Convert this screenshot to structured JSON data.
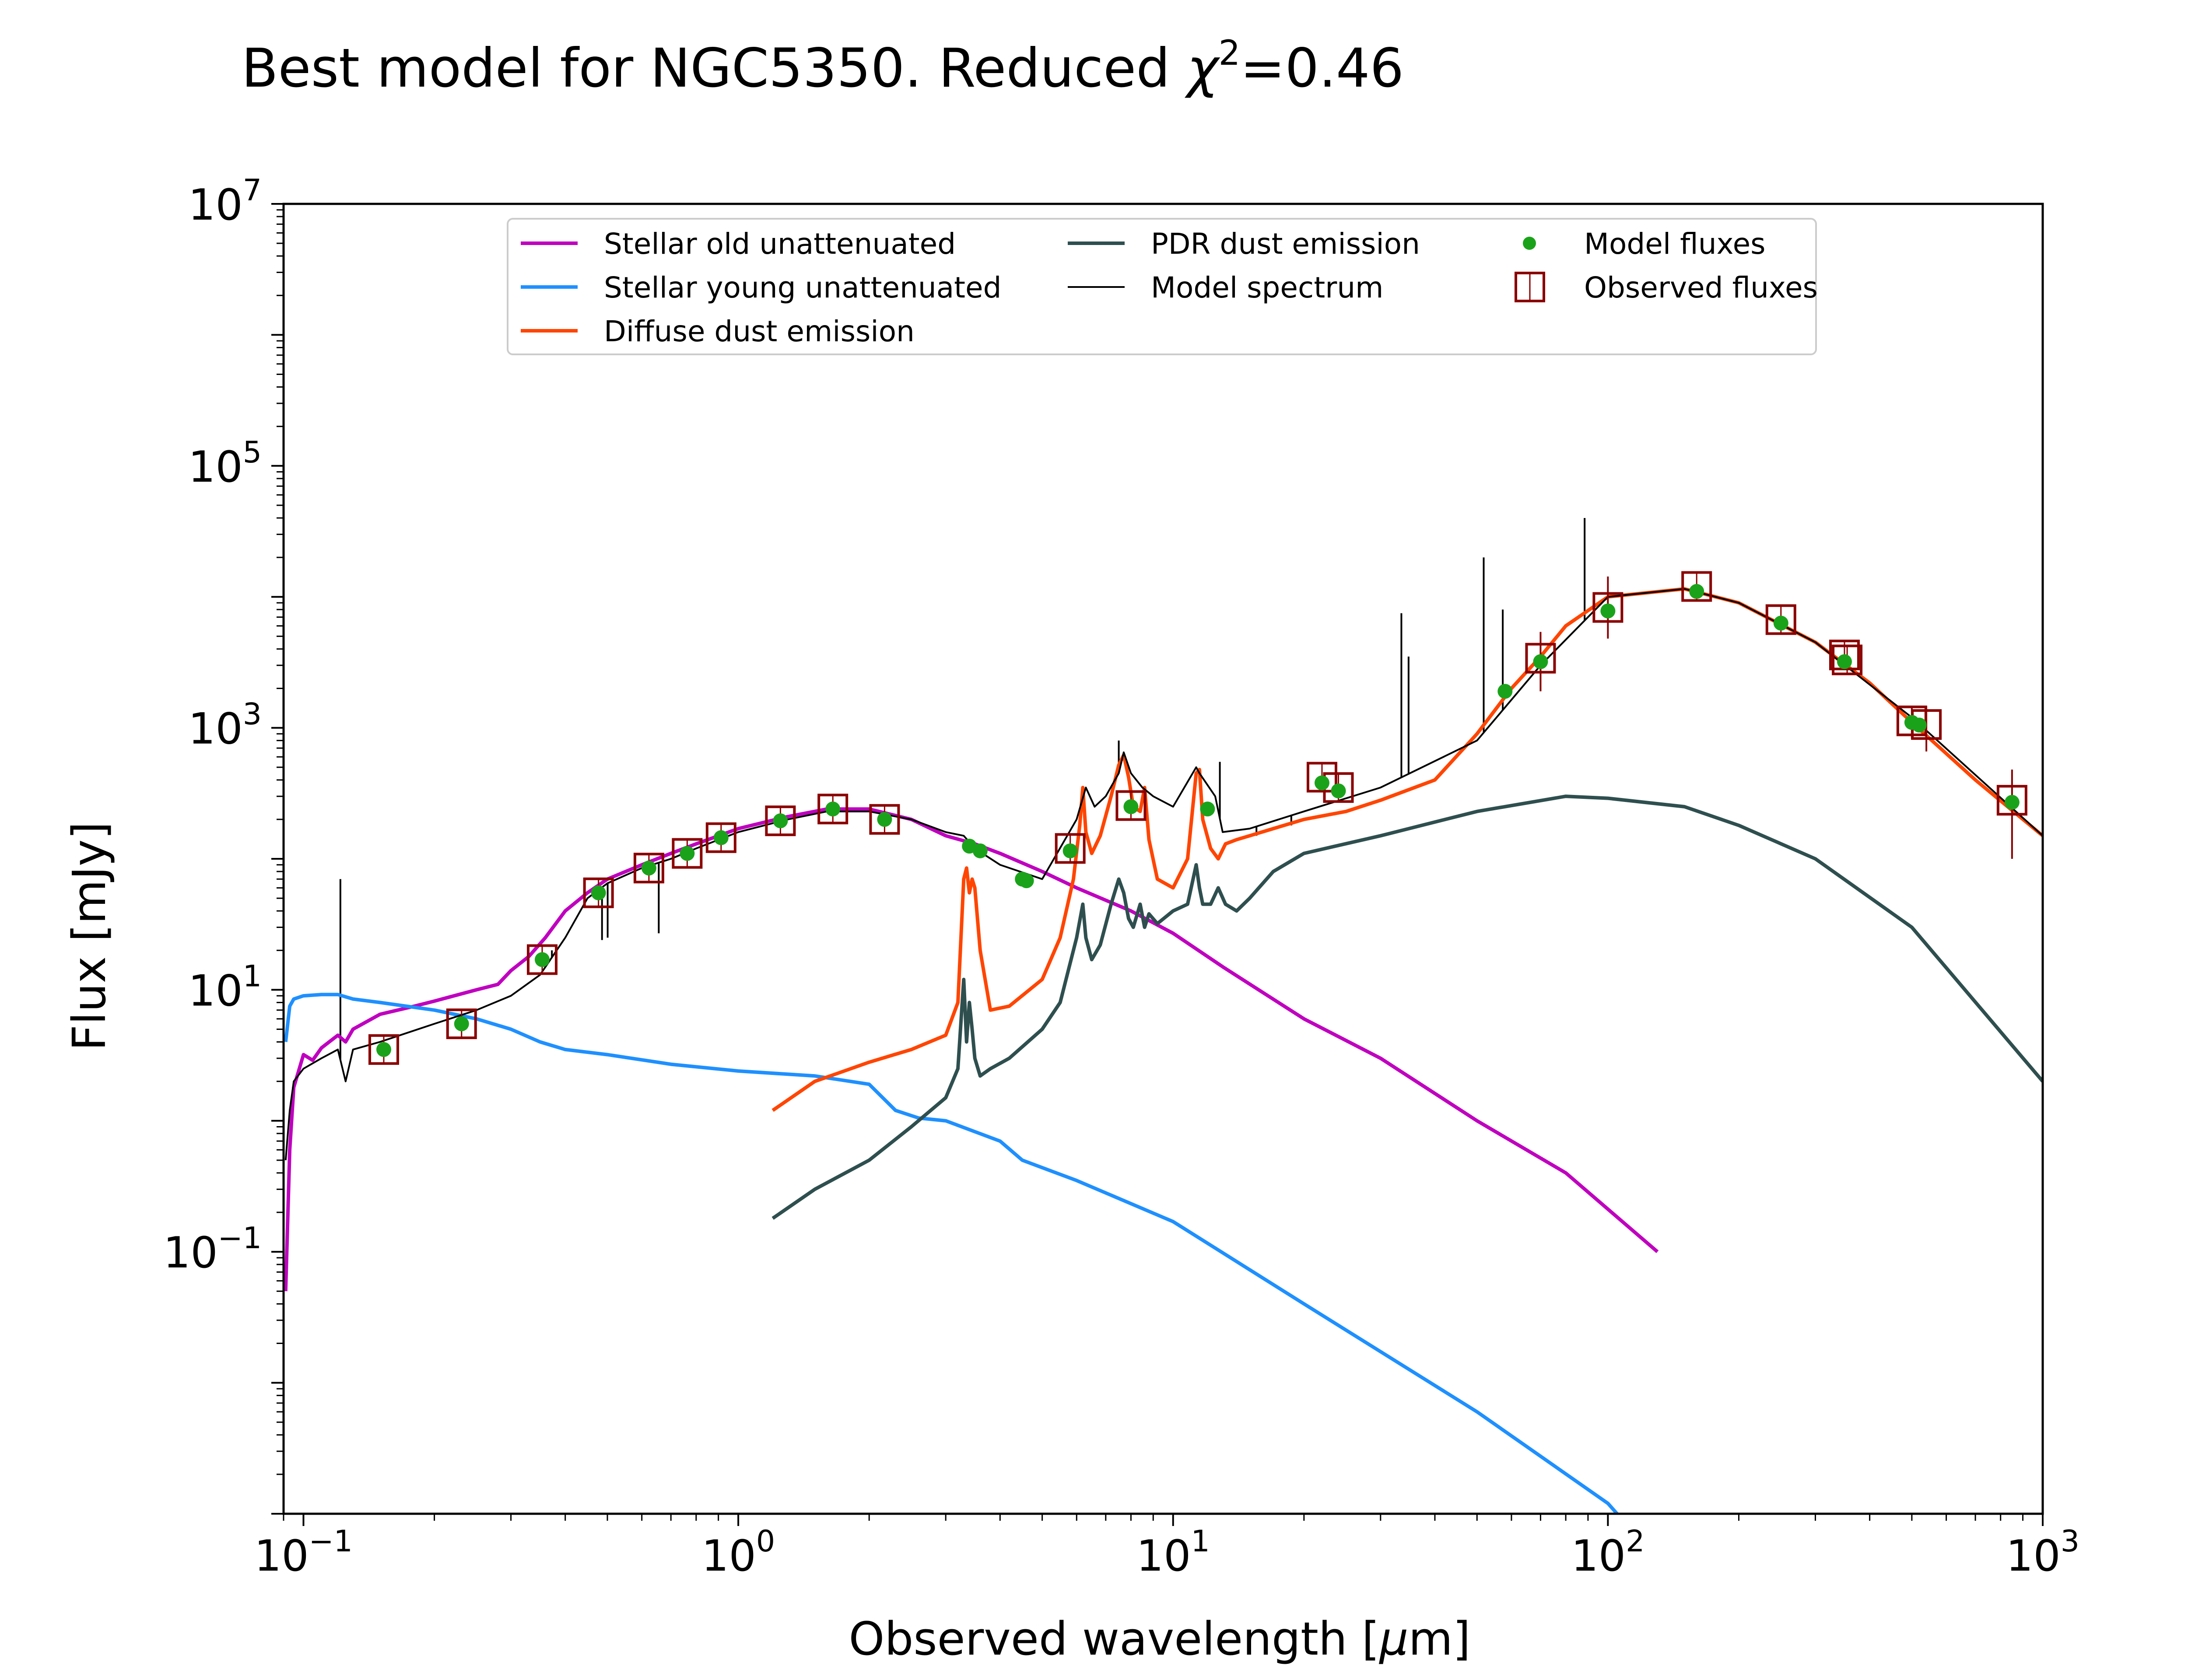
{
  "chart_data": {
    "type": "line",
    "title": "Best model for NGC5350. Reduced χ²=0.46",
    "title_main": "Best model for NGC5350. Reduced ",
    "title_chi": "χ",
    "title_sup": "2",
    "title_value": "=0.46",
    "xlabel": "Observed wavelength [μm]",
    "xlabel_prefix": "Observed wavelength [",
    "xlabel_mu": "μ",
    "xlabel_suffix": "m]",
    "ylabel": "Flux [mJy]",
    "xscale": "log",
    "yscale": "log",
    "xlim": [
      0.09,
      1000
    ],
    "ylim": [
      0.001,
      10000000
    ],
    "x_ticks": [
      {
        "value": 0.1,
        "base": "10",
        "exp": "−1"
      },
      {
        "value": 1,
        "base": "10",
        "exp": "0"
      },
      {
        "value": 10,
        "base": "10",
        "exp": "1"
      },
      {
        "value": 100,
        "base": "10",
        "exp": "2"
      },
      {
        "value": 1000,
        "base": "10",
        "exp": "3"
      }
    ],
    "y_ticks": [
      {
        "value": 0.1,
        "base": "10",
        "exp": "−1"
      },
      {
        "value": 10,
        "base": "10",
        "exp": "1"
      },
      {
        "value": 1000,
        "base": "10",
        "exp": "3"
      },
      {
        "value": 100000,
        "base": "10",
        "exp": "5"
      },
      {
        "value": 10000000,
        "base": "10",
        "exp": "7"
      }
    ],
    "legend": {
      "placement": "top-center",
      "entries": [
        {
          "label": "Stellar old unattenuated",
          "marker": "line",
          "color": "#bf00bf"
        },
        {
          "label": "Stellar young unattenuated",
          "marker": "line",
          "color": "#1e90ff"
        },
        {
          "label": "Diffuse dust emission",
          "marker": "line",
          "color": "#ff4500"
        },
        {
          "label": "PDR dust emission",
          "marker": "line",
          "color": "#2f4f4f"
        },
        {
          "label": "Model spectrum",
          "marker": "thin-line",
          "color": "#000000"
        },
        {
          "label": "Model fluxes",
          "marker": "dot",
          "color": "#1aa31a"
        },
        {
          "label": "Observed fluxes",
          "marker": "square",
          "color": "#8b0000"
        }
      ]
    },
    "series": [
      {
        "name": "Stellar old unattenuated",
        "color": "#bf00bf",
        "x": [
          0.091,
          0.093,
          0.095,
          0.1,
          0.105,
          0.11,
          0.12,
          0.125,
          0.13,
          0.15,
          0.18,
          0.2,
          0.25,
          0.28,
          0.3,
          0.33,
          0.36,
          0.4,
          0.45,
          0.5,
          0.6,
          0.7,
          0.8,
          1.0,
          1.3,
          1.6,
          2.0,
          2.5,
          3.0,
          3.5,
          4.0,
          5.0,
          6.0,
          8.0,
          10,
          13,
          20,
          30,
          50,
          80,
          130
        ],
        "y": [
          0.05,
          0.6,
          1.8,
          3.2,
          2.9,
          3.6,
          4.5,
          4.0,
          5.0,
          6.5,
          7.5,
          8.2,
          10,
          11,
          14,
          18,
          25,
          40,
          55,
          70,
          90,
          110,
          130,
          170,
          210,
          240,
          240,
          200,
          150,
          130,
          110,
          80,
          60,
          40,
          27,
          15,
          6,
          3,
          1,
          0.4,
          0.1
        ]
      },
      {
        "name": "Stellar young unattenuated",
        "color": "#1e90ff",
        "x": [
          0.091,
          0.093,
          0.095,
          0.1,
          0.11,
          0.12,
          0.13,
          0.15,
          0.2,
          0.25,
          0.3,
          0.35,
          0.4,
          0.5,
          0.7,
          1.0,
          1.5,
          2.0,
          2.3,
          2.6,
          3.0,
          4.0,
          4.5,
          6.0,
          10,
          20,
          50,
          100,
          105
        ],
        "y": [
          4.0,
          7.5,
          8.5,
          9.0,
          9.2,
          9.2,
          8.5,
          8.0,
          7.0,
          6.0,
          5.0,
          4.0,
          3.5,
          3.2,
          2.7,
          2.4,
          2.2,
          1.9,
          1.2,
          1.05,
          1.0,
          0.7,
          0.5,
          0.35,
          0.17,
          0.04,
          0.006,
          0.0012,
          0.001
        ]
      },
      {
        "name": "Diffuse dust emission",
        "color": "#ff4500",
        "x": [
          1.2,
          1.5,
          2.0,
          2.5,
          3.0,
          3.2,
          3.3,
          3.35,
          3.4,
          3.45,
          3.5,
          3.6,
          3.8,
          4.2,
          5.0,
          5.5,
          5.9,
          6.1,
          6.2,
          6.3,
          6.5,
          6.8,
          7.2,
          7.5,
          7.7,
          7.9,
          8.1,
          8.4,
          8.6,
          8.8,
          9.2,
          10.0,
          10.8,
          11.3,
          11.5,
          11.7,
          12.2,
          12.7,
          13.2,
          14.0,
          15.0,
          17.0,
          20,
          25,
          30,
          40,
          50,
          60,
          70,
          80,
          100,
          150,
          200,
          300,
          400,
          500,
          700,
          1000
        ],
        "y": [
          1.2,
          2.0,
          2.8,
          3.5,
          4.5,
          8,
          70,
          85,
          55,
          70,
          60,
          20,
          7,
          7.5,
          12,
          25,
          70,
          180,
          350,
          160,
          110,
          150,
          300,
          520,
          620,
          420,
          250,
          230,
          350,
          140,
          70,
          60,
          100,
          450,
          480,
          200,
          120,
          100,
          130,
          140,
          150,
          170,
          200,
          230,
          280,
          400,
          900,
          2000,
          3500,
          6000,
          10000,
          11500,
          9000,
          4500,
          2200,
          1100,
          400,
          150
        ]
      },
      {
        "name": "PDR dust emission",
        "color": "#2f4f4f",
        "x": [
          1.2,
          1.5,
          2.0,
          2.5,
          3.0,
          3.2,
          3.3,
          3.35,
          3.4,
          3.45,
          3.5,
          3.6,
          3.8,
          4.2,
          5.0,
          5.5,
          6.0,
          6.2,
          6.3,
          6.5,
          6.8,
          7.2,
          7.5,
          7.7,
          7.9,
          8.1,
          8.4,
          8.6,
          8.8,
          9.2,
          10.0,
          10.8,
          11.3,
          11.5,
          11.7,
          12.2,
          12.7,
          13.2,
          14.0,
          15.0,
          17.0,
          20,
          30,
          50,
          80,
          100,
          150,
          200,
          300,
          500,
          1000
        ],
        "y": [
          0.18,
          0.3,
          0.5,
          0.9,
          1.5,
          2.5,
          12,
          4,
          8,
          5,
          3,
          2.2,
          2.5,
          3.0,
          5,
          8,
          25,
          45,
          25,
          17,
          22,
          45,
          70,
          55,
          35,
          30,
          45,
          30,
          38,
          32,
          40,
          45,
          90,
          60,
          45,
          45,
          60,
          45,
          40,
          50,
          80,
          110,
          150,
          230,
          300,
          290,
          250,
          180,
          100,
          30,
          2
        ]
      },
      {
        "name": "Model spectrum",
        "color": "#000000",
        "thin": true,
        "x": [
          0.091,
          0.093,
          0.095,
          0.1,
          0.11,
          0.12,
          0.125,
          0.13,
          0.15,
          0.2,
          0.25,
          0.3,
          0.35,
          0.4,
          0.45,
          0.5,
          0.6,
          0.7,
          0.8,
          1.0,
          1.3,
          1.6,
          2.0,
          2.5,
          3.0,
          3.3,
          3.5,
          4.0,
          5.0,
          6.0,
          6.3,
          6.6,
          7.0,
          7.5,
          7.7,
          8.0,
          8.5,
          9.0,
          10,
          11.3,
          11.5,
          12.5,
          13,
          15,
          20,
          30,
          50,
          70,
          100,
          150,
          200,
          300,
          500,
          1000
        ],
        "y": [
          0.5,
          1.2,
          2.0,
          2.5,
          3.0,
          3.5,
          2.0,
          3.5,
          4.0,
          5.5,
          7,
          9,
          13,
          25,
          50,
          65,
          85,
          100,
          120,
          160,
          200,
          230,
          230,
          200,
          160,
          150,
          120,
          90,
          70,
          200,
          350,
          250,
          300,
          450,
          650,
          450,
          350,
          300,
          250,
          500,
          450,
          300,
          160,
          170,
          230,
          350,
          800,
          3000,
          10000,
          11500,
          9000,
          4500,
          1200,
          150
        ]
      },
      {
        "name": "Model fluxes",
        "color": "#1aa31a",
        "marker": "dot",
        "x": [
          0.153,
          0.231,
          0.354,
          0.477,
          0.623,
          0.763,
          0.913,
          1.25,
          1.65,
          2.17,
          3.4,
          3.6,
          4.5,
          4.6,
          5.8,
          8.0,
          12,
          22,
          24,
          58,
          70,
          100,
          160,
          250,
          350,
          500,
          520,
          850
        ],
        "y": [
          3.5,
          5.5,
          17,
          55,
          85,
          110,
          145,
          195,
          240,
          200,
          125,
          115,
          70,
          68,
          115,
          250,
          240,
          380,
          330,
          1900,
          3200,
          7800,
          11000,
          6300,
          3200,
          1100,
          1050,
          270
        ]
      },
      {
        "name": "Observed fluxes",
        "color": "#8b0000",
        "marker": "square",
        "x": [
          0.153,
          0.231,
          0.354,
          0.477,
          0.623,
          0.763,
          0.913,
          1.25,
          1.65,
          2.17,
          5.8,
          8.0,
          22,
          24,
          70,
          100,
          160,
          250,
          350,
          355,
          500,
          540,
          850
        ],
        "y": [
          3.5,
          5.5,
          17,
          55,
          85,
          110,
          145,
          195,
          240,
          200,
          120,
          255,
          420,
          350,
          3400,
          8300,
          12000,
          6700,
          3600,
          3300,
          1130,
          1060,
          280
        ],
        "yerr_lo": [
          0,
          0,
          0,
          0,
          0,
          0,
          0,
          0,
          0,
          0,
          0,
          0,
          0,
          0,
          1500,
          3500,
          0,
          0,
          0,
          0,
          300,
          400,
          180
        ],
        "yerr_hi": [
          0,
          0,
          0,
          0,
          0,
          0,
          0,
          0,
          0,
          0,
          0,
          0,
          0,
          0,
          2000,
          6000,
          0,
          0,
          0,
          0,
          300,
          400,
          200
        ]
      }
    ],
    "spectral_lines": {
      "color": "#000000",
      "x": [
        0.1216,
        0.3727,
        0.5007,
        0.6563,
        0.486,
        1.875,
        3.3,
        4.05,
        7.5,
        12.81,
        15.55,
        18.7,
        33.5,
        34.8,
        51.8,
        57.3,
        88.4,
        121.9
      ],
      "top": [
        70,
        20,
        25,
        27,
        24,
        0,
        0,
        0,
        800,
        550,
        150,
        180,
        7500,
        3500,
        20000,
        8000,
        40000,
        0
      ]
    }
  }
}
